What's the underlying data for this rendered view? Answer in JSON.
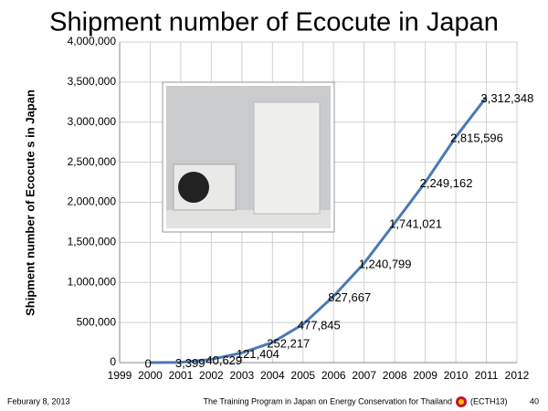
{
  "chart_data": {
    "type": "line",
    "title": "Shipment number of Ecocute in Japan",
    "y_label": "Shipment number of Ecocute s in Japan",
    "x": [
      2000,
      2001,
      2002,
      2003,
      2004,
      2005,
      2006,
      2007,
      2008,
      2009,
      2010,
      2011
    ],
    "series": [
      {
        "color": "#4a78b5",
        "values": [
          0,
          3399,
          40629,
          121404,
          252217,
          477845,
          827667,
          1240799,
          1741021,
          2249162,
          2815596,
          3312348
        ],
        "value_labels": [
          "0",
          "3,399",
          "40,629",
          "121,404",
          "252,217",
          "477,845",
          "827,667",
          "1,240,799",
          "1,741,021",
          "2,249,162",
          "2,815,596",
          "3,312,348"
        ]
      }
    ],
    "xlim": [
      1999,
      2012
    ],
    "xticks": [
      1999,
      2000,
      2001,
      2002,
      2003,
      2004,
      2005,
      2006,
      2007,
      2008,
      2009,
      2010,
      2011,
      2012
    ],
    "ylim": [
      0,
      4000000
    ],
    "yticks": [
      0,
      {
        "value": 500000,
        "label": "500,000"
      },
      {
        "value": 1000000,
        "label": "1,000,000"
      },
      {
        "value": 1500000,
        "label": "1,500,000"
      },
      {
        "value": 2000000,
        "label": "2,000,000"
      },
      {
        "value": 2500000,
        "label": "2,500,000"
      },
      {
        "value": 3000000,
        "label": "3,000,000"
      },
      {
        "value": 3500000,
        "label": "3,500,000"
      },
      {
        "value": 4000000,
        "label": "4,000,000"
      }
    ],
    "grid": true
  },
  "footer": {
    "date": "Feburary 8, 2013",
    "program": "The Training Program in Japan on Energy Conservation for Thailand",
    "code": "(ECTH13)",
    "page": "40"
  }
}
